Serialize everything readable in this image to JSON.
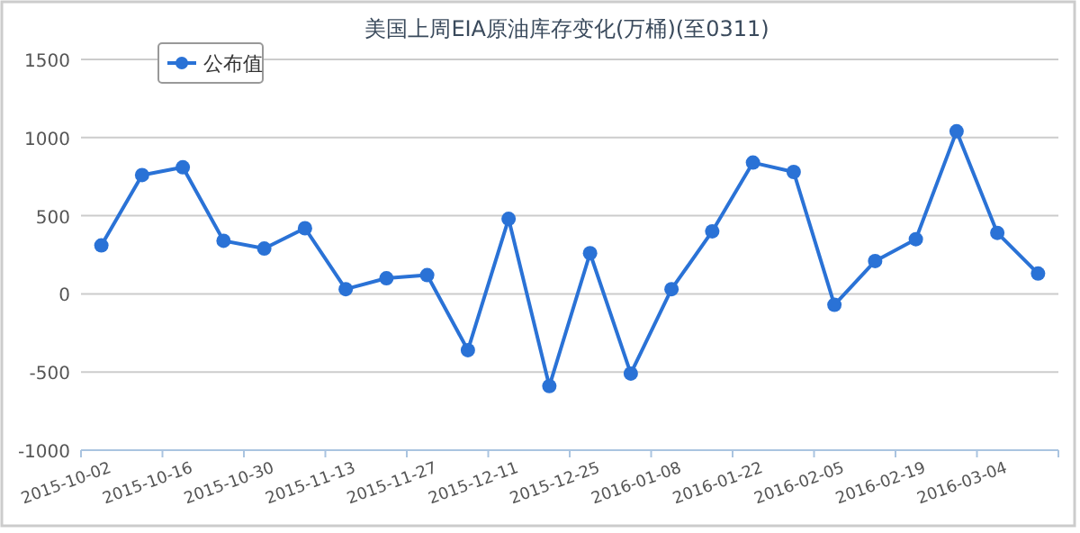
{
  "chart_data": {
    "type": "line",
    "title": "美国上周EIA原油库存变化(万桶)(至0311)",
    "categories": [
      "2015-10-02",
      null,
      "2015-10-16",
      null,
      "2015-10-30",
      null,
      "2015-11-13",
      null,
      "2015-11-27",
      null,
      "2015-12-11",
      null,
      "2015-12-25",
      null,
      "2016-01-08",
      null,
      "2016-01-22",
      null,
      "2016-02-05",
      null,
      "2016-02-19",
      null,
      "2016-03-04",
      null
    ],
    "series": [
      {
        "name": "公布值",
        "color": "#2a72d6",
        "values": [
          310,
          760,
          810,
          340,
          290,
          420,
          30,
          100,
          120,
          -360,
          480,
          -590,
          260,
          -510,
          30,
          400,
          840,
          780,
          -70,
          210,
          350,
          1040,
          390,
          130
        ]
      }
    ],
    "ylim": [
      -1000,
      1500
    ],
    "yticks": [
      -1000,
      -500,
      0,
      500,
      1000,
      1500
    ],
    "grid": "y",
    "legend": "top left",
    "marker": "circle",
    "line_style": "solid"
  }
}
